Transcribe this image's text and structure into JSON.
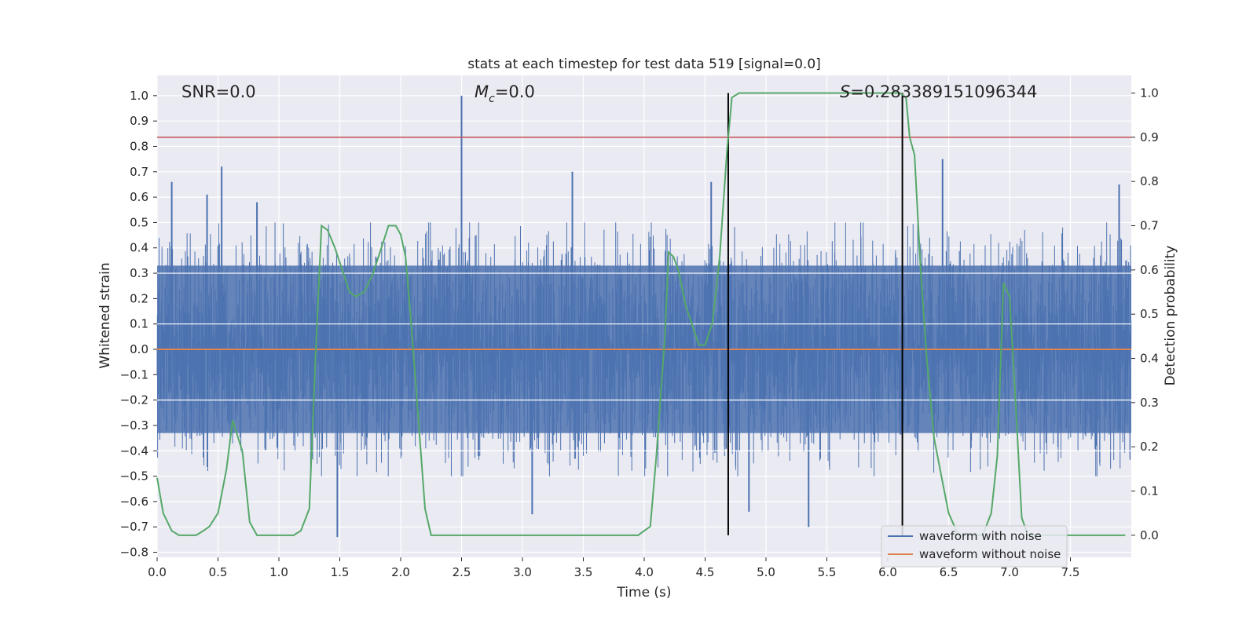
{
  "chart_data": {
    "type": "line",
    "title": "stats at each timestep for test data 519 [signal=0.0]",
    "xlabel": "Time (s)",
    "ylabel_left": "Whitened strain",
    "ylabel_right": "Detection probability",
    "xlim": [
      0.0,
      8.0
    ],
    "ylim_left": [
      -0.82,
      1.08
    ],
    "ylim_right": [
      -0.05,
      1.04
    ],
    "x_ticks": [
      0.0,
      0.5,
      1.0,
      1.5,
      2.0,
      2.5,
      3.0,
      3.5,
      4.0,
      4.5,
      5.0,
      5.5,
      6.0,
      6.5,
      7.0,
      7.5
    ],
    "x_tick_labels": [
      "0.0",
      "0.5",
      "1.0",
      "1.5",
      "2.0",
      "2.5",
      "3.0",
      "3.5",
      "4.0",
      "4.5",
      "5.0",
      "5.5",
      "6.0",
      "6.5",
      "7.0",
      "7.5"
    ],
    "y_left_ticks": [
      1.0,
      0.9,
      0.8,
      0.7,
      0.6,
      0.5,
      0.4,
      0.3,
      0.2,
      0.1,
      0.0,
      -0.1,
      -0.2,
      -0.3,
      -0.4,
      -0.5,
      -0.6,
      -0.7,
      -0.8
    ],
    "y_left_tick_labels": [
      "1.0",
      "0.9",
      "0.8",
      "0.7",
      "0.6",
      "0.5",
      "0.4",
      "0.3",
      "0.2",
      "0.1",
      "0.0",
      "−0.1",
      "−0.2",
      "−0.3",
      "−0.4",
      "−0.5",
      "−0.6",
      "−0.7",
      "−0.8"
    ],
    "y_right_ticks": [
      1.0,
      0.9,
      0.8,
      0.7,
      0.6,
      0.5,
      0.4,
      0.3,
      0.2,
      0.1,
      0.0
    ],
    "y_right_tick_labels": [
      "1.0",
      "0.9",
      "0.8",
      "0.7",
      "0.6",
      "0.5",
      "0.4",
      "0.3",
      "0.2",
      "0.1",
      "0.0"
    ],
    "annotations": {
      "snr": "SNR=0.0",
      "mc_symbol": "M",
      "mc_sub": "c",
      "mc_value": "=0.0",
      "s_symbol": "S",
      "s_value": "=0.283389151096344"
    },
    "threshold_line": {
      "axis": "right",
      "y": 0.9,
      "color": "#c44e52"
    },
    "vertical_markers": [
      4.69,
      6.12
    ],
    "series": [
      {
        "name": "waveform with noise",
        "axis": "left",
        "color": "#4c72b0",
        "style": "dense noise, typical envelope ±0.33, spikes up to 1.0 and down to -0.74",
        "spikes": [
          {
            "x": 0.12,
            "y": 0.66
          },
          {
            "x": 0.41,
            "y": 0.61
          },
          {
            "x": 0.53,
            "y": 0.72
          },
          {
            "x": 0.82,
            "y": 0.58
          },
          {
            "x": 1.48,
            "y": -0.74
          },
          {
            "x": 2.5,
            "y": 1.0
          },
          {
            "x": 3.08,
            "y": -0.65
          },
          {
            "x": 3.41,
            "y": 0.7
          },
          {
            "x": 4.55,
            "y": 0.66
          },
          {
            "x": 4.86,
            "y": -0.64
          },
          {
            "x": 5.35,
            "y": -0.7
          },
          {
            "x": 6.45,
            "y": 0.75
          },
          {
            "x": 7.9,
            "y": 0.65
          }
        ]
      },
      {
        "name": "waveform without noise",
        "axis": "left",
        "color": "#dd8452",
        "x": [
          0.0,
          8.0
        ],
        "y": [
          0.0,
          0.0
        ]
      },
      {
        "name": "Detection probability",
        "axis": "right",
        "color": "#55a868",
        "x": [
          0.0,
          0.05,
          0.12,
          0.18,
          0.25,
          0.32,
          0.38,
          0.43,
          0.5,
          0.57,
          0.62,
          0.7,
          0.76,
          0.82,
          0.88,
          0.95,
          1.05,
          1.12,
          1.18,
          1.25,
          1.3,
          1.35,
          1.4,
          1.46,
          1.52,
          1.58,
          1.63,
          1.7,
          1.77,
          1.83,
          1.9,
          1.96,
          2.0,
          2.04,
          2.08,
          2.13,
          2.2,
          2.25,
          2.3,
          2.4,
          3.0,
          3.6,
          3.95,
          4.0,
          4.05,
          4.1,
          4.17,
          4.2,
          4.24,
          4.28,
          4.34,
          4.4,
          4.45,
          4.5,
          4.56,
          4.62,
          4.68,
          4.72,
          4.78,
          4.85,
          5.5,
          6.0,
          6.1,
          6.15,
          6.18,
          6.22,
          6.27,
          6.32,
          6.38,
          6.45,
          6.5,
          6.58,
          6.7,
          6.78,
          6.85,
          6.9,
          6.95,
          7.0,
          7.05,
          7.1,
          7.15,
          7.25,
          7.4,
          7.6,
          7.95
        ],
        "y": [
          0.13,
          0.05,
          0.01,
          0.0,
          0.0,
          0.0,
          0.01,
          0.02,
          0.05,
          0.15,
          0.26,
          0.19,
          0.03,
          0.0,
          0.0,
          0.0,
          0.0,
          0.0,
          0.01,
          0.06,
          0.4,
          0.7,
          0.69,
          0.65,
          0.6,
          0.55,
          0.54,
          0.55,
          0.59,
          0.64,
          0.7,
          0.7,
          0.68,
          0.63,
          0.5,
          0.32,
          0.06,
          0.0,
          0.0,
          0.0,
          0.0,
          0.0,
          0.0,
          0.01,
          0.02,
          0.18,
          0.45,
          0.64,
          0.63,
          0.6,
          0.52,
          0.47,
          0.43,
          0.43,
          0.48,
          0.63,
          0.87,
          0.99,
          1.0,
          1.0,
          1.0,
          1.0,
          1.0,
          0.99,
          0.9,
          0.86,
          0.6,
          0.4,
          0.22,
          0.12,
          0.05,
          0.0,
          0.0,
          0.0,
          0.05,
          0.18,
          0.57,
          0.54,
          0.3,
          0.04,
          0.0,
          0.0,
          0.0,
          0.0,
          0.0
        ]
      }
    ],
    "legend": {
      "placement": "bottom-right",
      "entries": [
        {
          "label": "waveform with noise",
          "color": "#4c72b0"
        },
        {
          "label": "waveform without noise",
          "color": "#dd8452"
        }
      ]
    }
  },
  "colors": {
    "plot_background": "#eaeaf2",
    "grid": "#ffffff",
    "noise": "#4c72b0",
    "clean": "#dd8452",
    "probability": "#55a868",
    "threshold": "#c44e52",
    "marker": "#000000"
  }
}
